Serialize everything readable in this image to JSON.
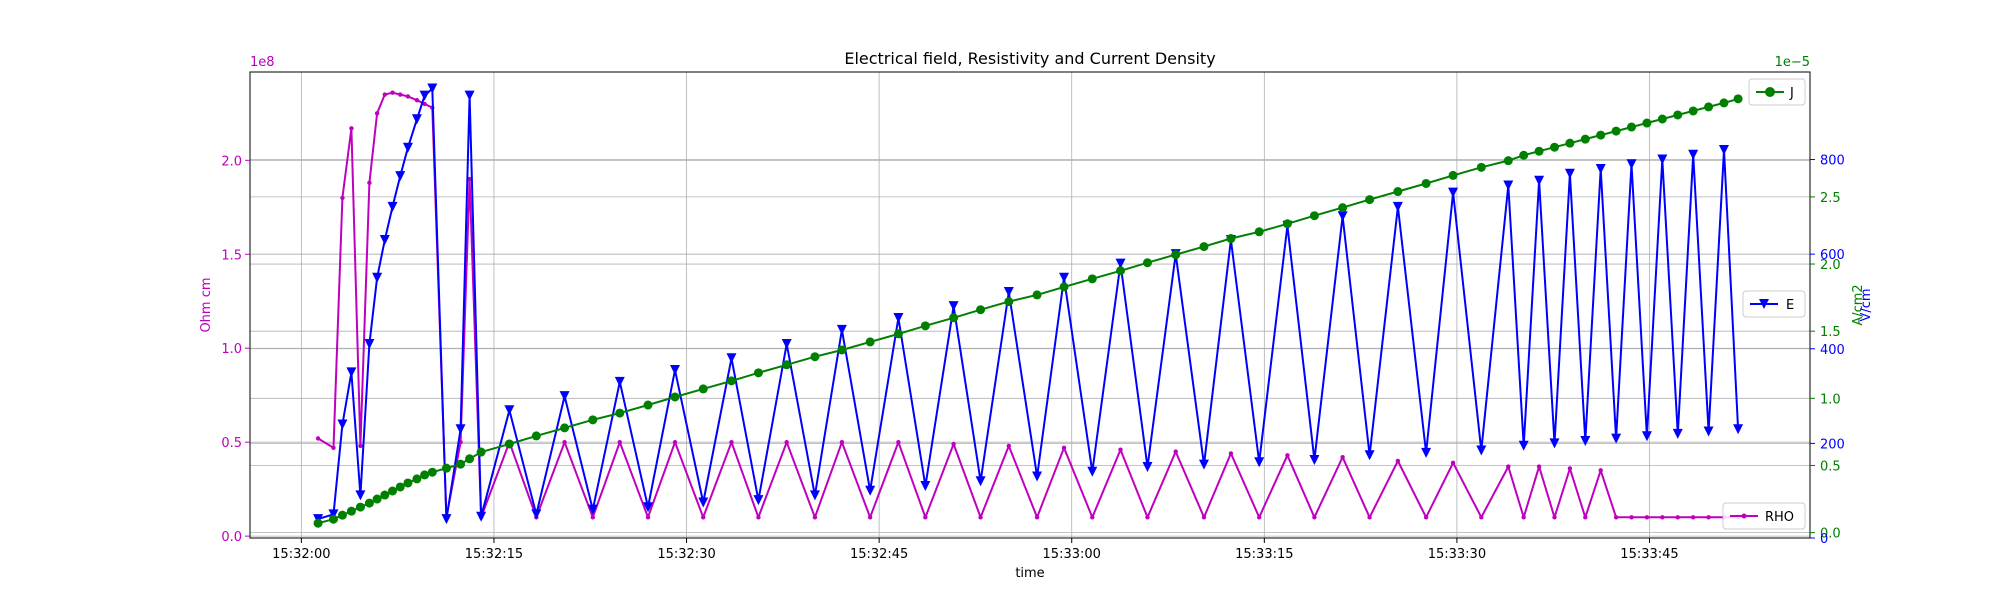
{
  "chart_data": {
    "type": "line",
    "title": "Electrical field, Resistivity and Current Density",
    "xlabel": "time",
    "x_tick_labels": [
      "15:32:00",
      "15:32:15",
      "15:32:30",
      "15:32:45",
      "15:33:00",
      "15:33:15",
      "15:33:30",
      "15:33:45"
    ],
    "x_tick_seconds": [
      0,
      15,
      30,
      45,
      60,
      75,
      90,
      105
    ],
    "x_range_seconds": [
      -4,
      117.5
    ],
    "grid": true,
    "axes": {
      "rho": {
        "ylabel": "Ohm cm",
        "exponent_label": "1e8",
        "ticks": [
          "0.0",
          "0.5",
          "1.0",
          "1.5",
          "2.0"
        ],
        "tick_values": [
          0,
          0.5,
          1.0,
          1.5,
          2.0
        ],
        "ylim": [
          -0.01,
          2.47
        ],
        "color": "#bf00bf"
      },
      "e": {
        "ylabel": "V/cm",
        "ticks": [
          "0",
          "200",
          "400",
          "600",
          "800"
        ],
        "tick_values": [
          0,
          200,
          400,
          600,
          800
        ],
        "ylim": [
          0,
          985
        ],
        "color": "#0000ff"
      },
      "j": {
        "ylabel": "A/cm2",
        "exponent_label": "1e−5",
        "ticks": [
          "0.0",
          "0.5",
          "1.0",
          "1.5",
          "2.0",
          "2.5"
        ],
        "tick_values": [
          0,
          0.5,
          1.0,
          1.5,
          2.0,
          2.5
        ],
        "ylim": [
          -0.04,
          3.43
        ],
        "color": "#008000"
      }
    },
    "legends": [
      {
        "label": "J",
        "position": "top-right",
        "color": "#008000",
        "marker": "circle"
      },
      {
        "label": "E",
        "position": "center-right",
        "color": "#0000ff",
        "marker": "triangle-down"
      },
      {
        "label": "RHO",
        "position": "bottom-right",
        "color": "#bf00bf",
        "marker": "dot"
      }
    ],
    "series": [
      {
        "name": "RHO",
        "axis": "rho",
        "color": "#bf00bf",
        "marker": "dot",
        "x": [
          1.3,
          2.5,
          3.2,
          3.9,
          4.6,
          5.3,
          5.9,
          6.5,
          7.1,
          7.7,
          8.3,
          9.0,
          9.6,
          10.2,
          11.3,
          12.4,
          13.1,
          14.0,
          16.2,
          18.3,
          20.5,
          22.7,
          24.8,
          27.0,
          29.1,
          31.3,
          33.5,
          35.6,
          37.8,
          40.0,
          42.1,
          44.3,
          46.5,
          48.6,
          50.8,
          52.9,
          55.1,
          57.3,
          59.4,
          61.6,
          63.8,
          65.9,
          68.1,
          70.3,
          72.4,
          74.6,
          76.8,
          78.9,
          81.1,
          83.2,
          85.4,
          87.6,
          89.7,
          91.9,
          94.0,
          95.2,
          96.4,
          97.6,
          98.8,
          100.0,
          101.2,
          102.4,
          103.6,
          104.8,
          106.0,
          107.2,
          108.4,
          109.6,
          110.8,
          111.9
        ],
        "values": [
          0.52,
          0.47,
          1.8,
          2.17,
          0.48,
          1.88,
          2.25,
          2.35,
          2.36,
          2.35,
          2.34,
          2.32,
          2.3,
          2.28,
          0.1,
          0.5,
          1.9,
          0.1,
          0.5,
          0.1,
          0.5,
          0.1,
          0.5,
          0.1,
          0.5,
          0.1,
          0.5,
          0.1,
          0.5,
          0.1,
          0.5,
          0.1,
          0.5,
          0.1,
          0.49,
          0.1,
          0.48,
          0.1,
          0.47,
          0.1,
          0.46,
          0.1,
          0.45,
          0.1,
          0.44,
          0.1,
          0.43,
          0.1,
          0.42,
          0.1,
          0.4,
          0.1,
          0.39,
          0.1,
          0.37,
          0.1,
          0.37,
          0.1,
          0.36,
          0.1,
          0.35,
          0.1,
          0.1,
          0.1,
          0.1,
          0.1,
          0.1,
          0.1,
          0.1,
          0.1
        ]
      },
      {
        "name": "E",
        "axis": "e",
        "color": "#0000ff",
        "marker": "triangle-down",
        "x": [
          1.3,
          2.5,
          3.2,
          3.9,
          4.6,
          5.3,
          5.9,
          6.5,
          7.1,
          7.7,
          8.3,
          9.0,
          9.6,
          10.2,
          11.3,
          12.4,
          13.1,
          14.0,
          16.2,
          18.3,
          20.5,
          22.7,
          24.8,
          27.0,
          29.1,
          31.3,
          33.5,
          35.6,
          37.8,
          40.0,
          42.1,
          44.3,
          46.5,
          48.6,
          50.8,
          52.9,
          55.1,
          57.3,
          59.4,
          61.6,
          63.8,
          65.9,
          68.1,
          70.3,
          72.4,
          74.6,
          76.8,
          78.9,
          81.1,
          83.2,
          85.4,
          87.6,
          89.7,
          91.9,
          94.0,
          95.2,
          96.4,
          97.6,
          98.8,
          100.0,
          101.2,
          102.4,
          103.6,
          104.8,
          106.0,
          107.2,
          108.4,
          109.6,
          110.8,
          111.9
        ],
        "values": [
          40,
          50,
          240,
          350,
          90,
          410,
          550,
          630,
          700,
          765,
          825,
          885,
          935,
          950,
          40,
          230,
          935,
          45,
          270,
          50,
          300,
          60,
          330,
          65,
          355,
          75,
          380,
          80,
          410,
          90,
          440,
          100,
          465,
          110,
          490,
          120,
          520,
          130,
          550,
          140,
          580,
          150,
          600,
          155,
          630,
          160,
          660,
          165,
          680,
          175,
          700,
          180,
          730,
          185,
          745,
          195,
          755,
          200,
          770,
          205,
          780,
          210,
          790,
          215,
          800,
          220,
          810,
          225,
          820,
          230
        ]
      },
      {
        "name": "J",
        "axis": "j",
        "color": "#008000",
        "marker": "circle",
        "x": [
          1.3,
          2.5,
          3.2,
          3.9,
          4.6,
          5.3,
          5.9,
          6.5,
          7.1,
          7.7,
          8.3,
          9.0,
          9.6,
          10.2,
          11.3,
          12.4,
          13.1,
          14.0,
          16.2,
          18.3,
          20.5,
          22.7,
          24.8,
          27.0,
          29.1,
          31.3,
          33.5,
          35.6,
          37.8,
          40.0,
          42.1,
          44.3,
          46.5,
          48.6,
          50.8,
          52.9,
          55.1,
          57.3,
          59.4,
          61.6,
          63.8,
          65.9,
          68.1,
          70.3,
          72.4,
          74.6,
          76.8,
          78.9,
          81.1,
          83.2,
          85.4,
          87.6,
          89.7,
          91.9,
          94.0,
          95.2,
          96.4,
          97.6,
          98.8,
          100.0,
          101.2,
          102.4,
          103.6,
          104.8,
          106.0,
          107.2,
          108.4,
          109.6,
          110.8,
          111.9
        ],
        "values": [
          0.07,
          0.1,
          0.13,
          0.16,
          0.19,
          0.22,
          0.25,
          0.28,
          0.31,
          0.34,
          0.37,
          0.4,
          0.43,
          0.45,
          0.48,
          0.51,
          0.55,
          0.6,
          0.66,
          0.72,
          0.78,
          0.84,
          0.89,
          0.95,
          1.01,
          1.07,
          1.13,
          1.19,
          1.25,
          1.31,
          1.36,
          1.42,
          1.48,
          1.54,
          1.6,
          1.66,
          1.72,
          1.77,
          1.83,
          1.89,
          1.95,
          2.01,
          2.07,
          2.13,
          2.19,
          2.24,
          2.3,
          2.36,
          2.42,
          2.48,
          2.54,
          2.6,
          2.66,
          2.72,
          2.77,
          2.81,
          2.84,
          2.87,
          2.9,
          2.93,
          2.96,
          2.99,
          3.02,
          3.05,
          3.08,
          3.11,
          3.14,
          3.17,
          3.2,
          3.23
        ]
      }
    ]
  }
}
